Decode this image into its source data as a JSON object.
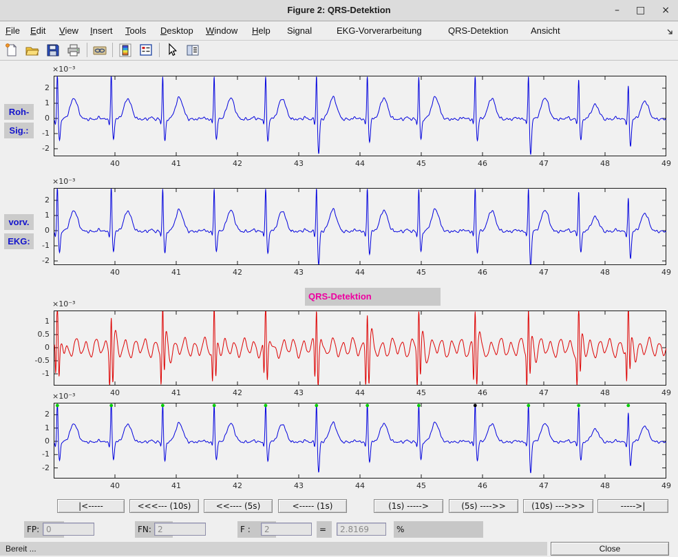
{
  "window": {
    "title": "Figure 2: QRS-Detektion",
    "controls": [
      {
        "name": "minimize-button",
        "glyph": "–"
      },
      {
        "name": "maximize-button",
        "glyph": "□"
      },
      {
        "name": "close-button",
        "glyph": "×"
      }
    ]
  },
  "menu": {
    "items": [
      {
        "label": "File",
        "underline": 0
      },
      {
        "label": "Edit",
        "underline": 0
      },
      {
        "label": "View",
        "underline": 0
      },
      {
        "label": "Insert",
        "underline": 0
      },
      {
        "label": "Tools",
        "underline": 0
      },
      {
        "label": "Desktop",
        "underline": 0
      },
      {
        "label": "Window",
        "underline": 0
      },
      {
        "label": "Help",
        "underline": 0
      },
      {
        "label": "Signal",
        "underline": -1
      },
      {
        "label": "EKG-Vorverarbeitung",
        "underline": -1
      },
      {
        "label": "QRS-Detektion",
        "underline": -1
      },
      {
        "label": "Ansicht",
        "underline": -1
      }
    ]
  },
  "toolbar": {
    "icons": [
      "new-document",
      "open-folder",
      "save",
      "print",
      "link-plot",
      "insert-colorbar",
      "insert-legend",
      "edit-plot-arrow",
      "plot-browser"
    ]
  },
  "plots": {
    "exponent": "×10⁻³",
    "x_tick_labels": [
      "40",
      "41",
      "42",
      "43",
      "44",
      "45",
      "46",
      "47",
      "48",
      "49"
    ],
    "x_range": [
      39,
      49
    ],
    "beats": {
      "times": [
        39.06,
        39.94,
        40.78,
        41.62,
        42.46,
        43.29,
        44.12,
        44.96,
        45.88,
        46.75,
        47.57,
        48.38
      ],
      "r_amp": [
        3.0,
        3.0,
        2.9,
        2.95,
        2.85,
        2.95,
        2.9,
        2.8,
        2.95,
        2.9,
        2.75,
        2.2
      ],
      "s_depth": [
        -1.35,
        -1.3,
        -1.45,
        -1.35,
        -1.4,
        -2.3,
        -1.45,
        -1.35,
        -1.4,
        -2.35,
        -1.45,
        -1.8
      ],
      "t_amp": [
        1.38,
        1.35,
        1.42,
        1.4,
        1.36,
        1.44,
        1.4,
        1.47,
        1.38,
        1.42,
        0.95,
        1.2
      ]
    },
    "detection_markers": {
      "black_times": [
        45.88
      ],
      "marker_value": 2.7
    },
    "panels": [
      {
        "name": "roh-signal",
        "side_label": [
          "Roh-",
          "Sig.:"
        ],
        "y_ticks": [
          "2",
          "1",
          "0",
          "-1",
          "-2"
        ],
        "signal": "ecg",
        "color": "#0000dd"
      },
      {
        "name": "vorverarbeitetes-ekg",
        "side_label": [
          "vorv.",
          "EKG:"
        ],
        "y_ticks": [
          "2",
          "1",
          "0",
          "-1",
          "-2"
        ],
        "signal": "ecg",
        "color": "#0000dd"
      },
      {
        "name": "qrs-detektion-signal",
        "header": "QRS-Detektion",
        "y_ticks": [
          "1",
          "0.5",
          "0",
          "-0.5",
          "-1"
        ],
        "signal": "filt",
        "color": "#dd0000"
      },
      {
        "name": "detektion-ergebnis",
        "y_ticks": [
          "2",
          "1",
          "0",
          "-1",
          "-2"
        ],
        "signal": "ecg",
        "color": "#0000dd",
        "markers": true
      }
    ]
  },
  "nav": {
    "left": [
      "|<-----",
      "<<<--- (10s)",
      "<<---- (5s)",
      "<----- (1s)"
    ],
    "right": [
      "(1s) ----->",
      "(5s) ---->>",
      "(10s) --->>>",
      "----->|"
    ]
  },
  "stats": {
    "fp_label": "FP:",
    "fp_value": "0",
    "fn_label": "FN:",
    "fn_value": "2",
    "f_label": "F :",
    "f_value": "2",
    "equals": "=",
    "ratio_value": "2.8169",
    "percent": "%"
  },
  "statusbar": {
    "text": "Bereit ...",
    "close_label": "Close"
  },
  "colors": {
    "trace_blue": "#0000dd",
    "trace_red": "#dd0000",
    "marker_green": "#00cc00",
    "marker_black": "#000000",
    "label_blue": "#1414cc",
    "header_magenta": "#ee00a0",
    "axis_line": "#1a1a1a"
  }
}
